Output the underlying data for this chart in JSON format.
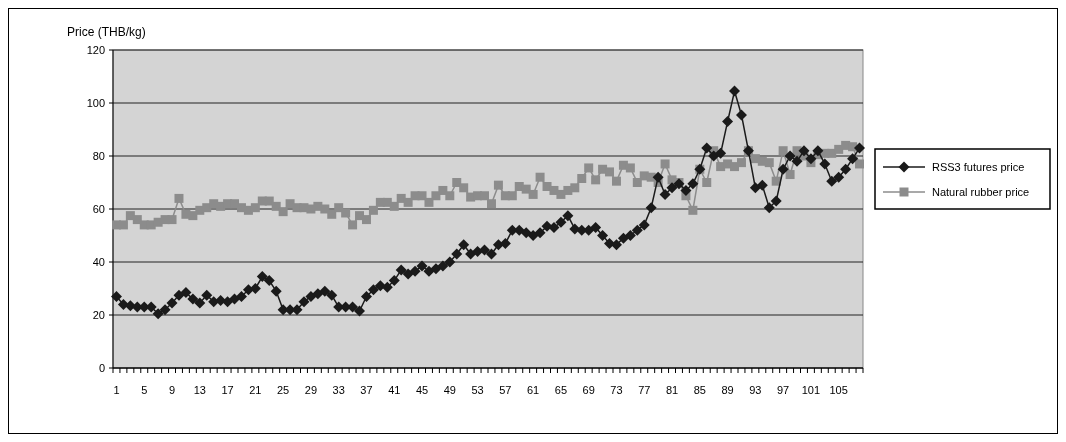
{
  "chart_data": {
    "type": "line",
    "ylabel": "Price (THB/kg)",
    "categories": [
      "1",
      null,
      null,
      null,
      "5",
      null,
      null,
      null,
      "9",
      null,
      null,
      null,
      "13",
      null,
      null,
      null,
      "17",
      null,
      null,
      null,
      "21",
      null,
      null,
      null,
      "25",
      null,
      null,
      null,
      "29",
      null,
      null,
      null,
      "33",
      null,
      null,
      null,
      "37",
      null,
      null,
      null,
      "41",
      null,
      null,
      null,
      "45",
      null,
      null,
      null,
      "49",
      null,
      null,
      null,
      "53",
      null,
      null,
      null,
      "57",
      null,
      null,
      null,
      "61",
      null,
      null,
      null,
      "65",
      null,
      null,
      null,
      "69",
      null,
      null,
      null,
      "73",
      null,
      null,
      null,
      "77",
      null,
      null,
      null,
      "81",
      null,
      null,
      null,
      "85",
      null,
      null,
      null,
      "89",
      null,
      null,
      null,
      "93",
      null,
      null,
      null,
      "97",
      null,
      null,
      null,
      "101",
      null,
      null,
      null,
      "105",
      null,
      null,
      null
    ],
    "ylim": [
      0,
      120
    ],
    "yticks": [
      0,
      20,
      40,
      60,
      80,
      100,
      120
    ],
    "grid": "y",
    "legend": "right",
    "series": [
      {
        "name": "RSS3 futures price",
        "color": "#1a1a1a",
        "marker": "diamond",
        "values": [
          27,
          24,
          23.5,
          23,
          23,
          23,
          20.5,
          22,
          24.5,
          27.5,
          28.5,
          26,
          24.5,
          27.5,
          25,
          25.5,
          25,
          26,
          27,
          29.5,
          30,
          34.5,
          33,
          29,
          22,
          22,
          22,
          25,
          27,
          28,
          29,
          27.5,
          23,
          23,
          23,
          21.5,
          27,
          29.5,
          31,
          30.5,
          33,
          37,
          35.5,
          36.5,
          38.5,
          36.5,
          37.5,
          38.5,
          40,
          43,
          46.5,
          43,
          44,
          44.5,
          43,
          46.5,
          47,
          52,
          52,
          51,
          50,
          51,
          53.5,
          53,
          55,
          57.5,
          52.5,
          52,
          52,
          53,
          50,
          47,
          46.5,
          49,
          50,
          52,
          54,
          60.5,
          72,
          65.5,
          68,
          69.5,
          67,
          69.5,
          75,
          83,
          80,
          81,
          93,
          104.5,
          95.5,
          82,
          68,
          69,
          60.5,
          63,
          75,
          80,
          78,
          82,
          79,
          82,
          77,
          70.5,
          72,
          75,
          79,
          83
        ]
      },
      {
        "name": "Natural rubber price",
        "color": "#8c8c8c",
        "marker": "square",
        "values": [
          54,
          54,
          57.5,
          56,
          54,
          54,
          55,
          56,
          56,
          64,
          58,
          57.5,
          59.5,
          60.5,
          62,
          61,
          62,
          62,
          60.5,
          59.5,
          60.5,
          63,
          63,
          61,
          59,
          62,
          60.5,
          60.5,
          60,
          61,
          60,
          58,
          60.5,
          58.5,
          54,
          57.5,
          56,
          59.5,
          62.5,
          62.5,
          61,
          64,
          62.5,
          65,
          65,
          62.5,
          65,
          67,
          65,
          70,
          68,
          64.5,
          65,
          65,
          62,
          69,
          65,
          65,
          68.5,
          67.5,
          65.5,
          72,
          68.5,
          67,
          65.5,
          67,
          68,
          71.5,
          75.5,
          71,
          75,
          74,
          70.5,
          76.5,
          75.5,
          70,
          72.5,
          72,
          70,
          77,
          71,
          70,
          65,
          59.5,
          75,
          70,
          82,
          76,
          77,
          76,
          77.5,
          82,
          79,
          78,
          77.5,
          70.5,
          82,
          73,
          82,
          80,
          77.5,
          80.5,
          81,
          81,
          82.5,
          84,
          83.5,
          77
        ]
      }
    ]
  }
}
